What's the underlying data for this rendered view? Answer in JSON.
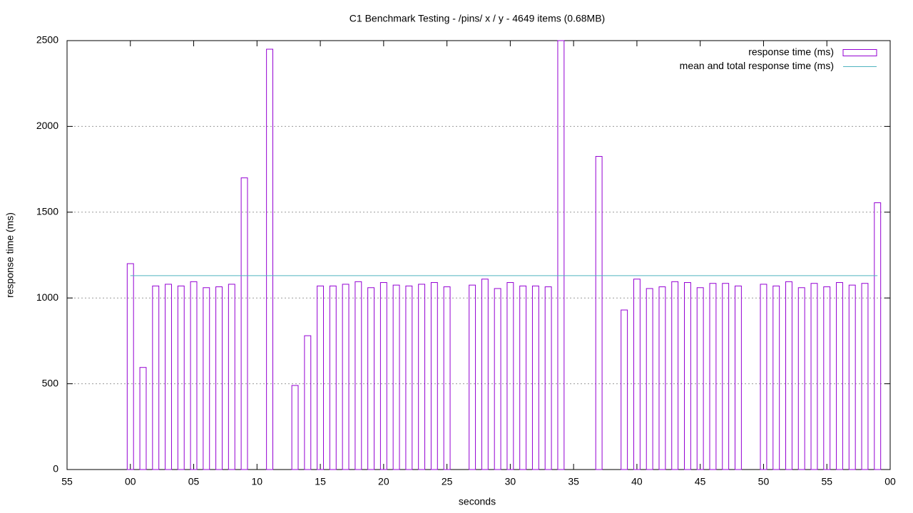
{
  "chart_data": {
    "type": "bar",
    "title": "C1 Benchmark Testing - /pins/ x / y  - 4649 items (0.68MB)",
    "x_label": "seconds",
    "y_label": "response time (ms)",
    "xlim": [
      -5,
      60
    ],
    "xticks": [
      {
        "value": -5,
        "label": "55"
      },
      {
        "value": 0,
        "label": "00"
      },
      {
        "value": 5,
        "label": "05"
      },
      10,
      15,
      20,
      25,
      30,
      35,
      40,
      45,
      50,
      55,
      {
        "value": 60,
        "label": "00"
      }
    ],
    "ylim": [
      0,
      2500
    ],
    "yticks": [
      0,
      500,
      1000,
      1500,
      2000,
      2500
    ],
    "grid": "y",
    "legend": "top-right",
    "series": [
      {
        "name": "response time (ms)",
        "type": "bar",
        "color": "#9400d3",
        "x": [
          0,
          1,
          2,
          3,
          4,
          5,
          6,
          7,
          8,
          9,
          11,
          13,
          14,
          15,
          16,
          17,
          18,
          19,
          20,
          21,
          22,
          23,
          24,
          25,
          27,
          28,
          29,
          30,
          31,
          32,
          33,
          34,
          37,
          39,
          40,
          41,
          42,
          43,
          44,
          45,
          46,
          47,
          48,
          50,
          51,
          52,
          53,
          54,
          55,
          56,
          57,
          58,
          59
        ],
        "values": [
          1200,
          595,
          1070,
          1080,
          1070,
          1095,
          1060,
          1065,
          1080,
          1700,
          2450,
          490,
          780,
          1070,
          1070,
          1080,
          1095,
          1060,
          1090,
          1075,
          1070,
          1080,
          1090,
          1065,
          1075,
          1110,
          1055,
          1090,
          1070,
          1070,
          1065,
          2500,
          1825,
          930,
          1110,
          1055,
          1065,
          1095,
          1090,
          1060,
          1085,
          1085,
          1070,
          1080,
          1070,
          1095,
          1060,
          1085,
          1065,
          1090,
          1075,
          1085,
          1555
        ]
      },
      {
        "name": "mean and total response time (ms)",
        "type": "line",
        "color": "#4fb3bf",
        "x": [
          0,
          59
        ],
        "values": [
          1130,
          1130
        ]
      }
    ]
  }
}
